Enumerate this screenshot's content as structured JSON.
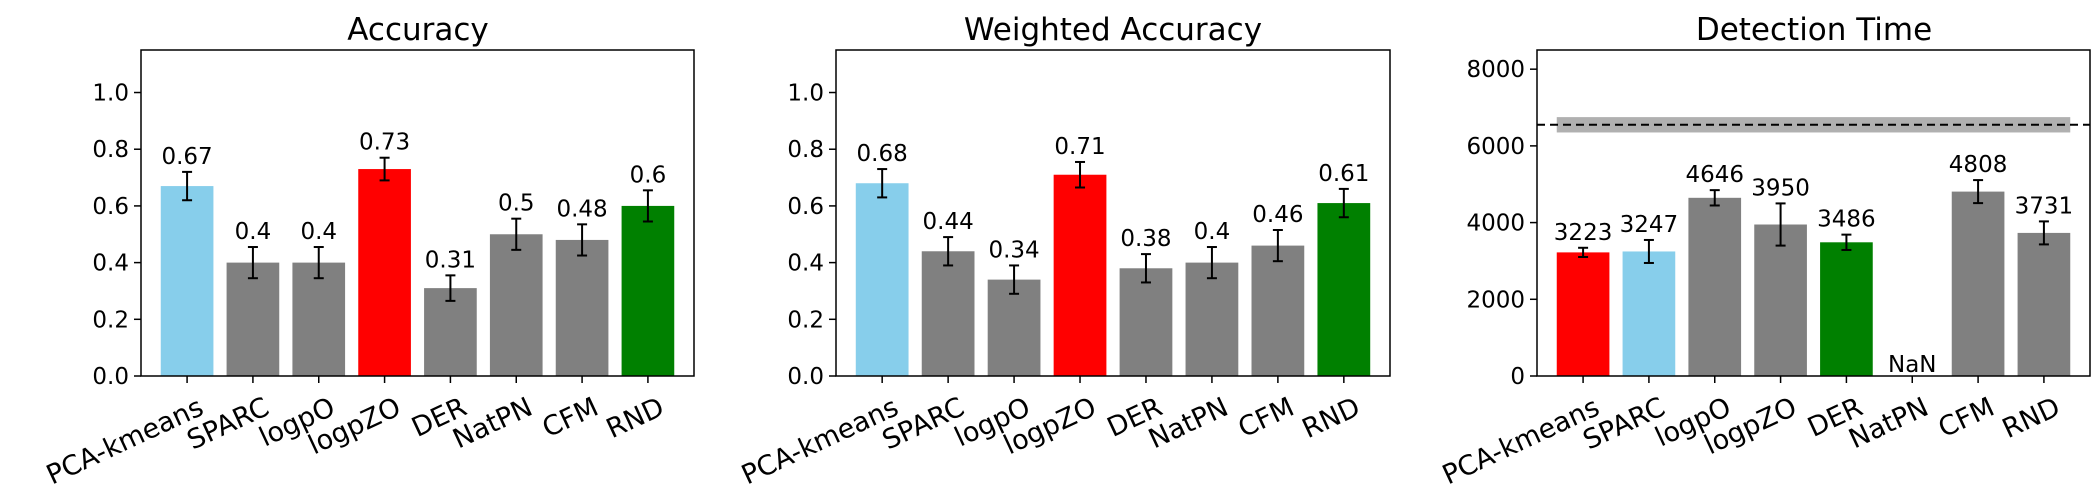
{
  "chart_data": [
    {
      "type": "bar",
      "title": "Accuracy",
      "categories": [
        "PCA-kmeans",
        "SPARC",
        "logpO",
        "logpZO",
        "DER",
        "NatPN",
        "CFM",
        "RND"
      ],
      "values": [
        0.67,
        0.4,
        0.4,
        0.73,
        0.31,
        0.5,
        0.48,
        0.6
      ],
      "value_labels": [
        "0.67",
        "0.4",
        "0.4",
        "0.73",
        "0.31",
        "0.5",
        "0.48",
        "0.6"
      ],
      "errors": [
        0.05,
        0.055,
        0.055,
        0.04,
        0.045,
        0.055,
        0.055,
        0.055
      ],
      "colors": [
        "#87ceeb",
        "#808080",
        "#808080",
        "#ff0000",
        "#808080",
        "#808080",
        "#808080",
        "#008000"
      ],
      "yticks": [
        "0.0",
        "0.2",
        "0.4",
        "0.6",
        "0.8",
        "1.0"
      ],
      "ytick_values": [
        0,
        0.2,
        0.4,
        0.6,
        0.8,
        1.0
      ],
      "ylim": [
        0,
        1.15
      ],
      "xlabel": "",
      "ylabel": "",
      "grid": false
    },
    {
      "type": "bar",
      "title": "Weighted Accuracy",
      "categories": [
        "PCA-kmeans",
        "SPARC",
        "logpO",
        "logpZO",
        "DER",
        "NatPN",
        "CFM",
        "RND"
      ],
      "values": [
        0.68,
        0.44,
        0.34,
        0.71,
        0.38,
        0.4,
        0.46,
        0.61
      ],
      "value_labels": [
        "0.68",
        "0.44",
        "0.34",
        "0.71",
        "0.38",
        "0.4",
        "0.46",
        "0.61"
      ],
      "errors": [
        0.05,
        0.05,
        0.05,
        0.045,
        0.05,
        0.055,
        0.055,
        0.05
      ],
      "colors": [
        "#87ceeb",
        "#808080",
        "#808080",
        "#ff0000",
        "#808080",
        "#808080",
        "#808080",
        "#008000"
      ],
      "yticks": [
        "0.0",
        "0.2",
        "0.4",
        "0.6",
        "0.8",
        "1.0"
      ],
      "ytick_values": [
        0,
        0.2,
        0.4,
        0.6,
        0.8,
        1.0
      ],
      "ylim": [
        0,
        1.15
      ],
      "xlabel": "",
      "ylabel": "",
      "grid": false
    },
    {
      "type": "bar",
      "title": "Detection Time",
      "categories": [
        "PCA-kmeans",
        "SPARC",
        "logpO",
        "logpZO",
        "DER",
        "NatPN",
        "CFM",
        "RND"
      ],
      "values": [
        3223,
        3247,
        4646,
        3950,
        3486,
        null,
        4808,
        3731
      ],
      "value_labels": [
        "3223",
        "3247",
        "4646",
        "3950",
        "3486",
        "NaN",
        "4808",
        "3731"
      ],
      "errors": [
        120,
        300,
        200,
        550,
        200,
        null,
        300,
        300
      ],
      "colors": [
        "#ff0000",
        "#87ceeb",
        "#808080",
        "#808080",
        "#008000",
        "#808080",
        "#808080",
        "#808080"
      ],
      "yticks": [
        "0",
        "2000",
        "4000",
        "6000",
        "8000"
      ],
      "ytick_values": [
        0,
        2000,
        4000,
        6000,
        8000
      ],
      "ylim": [
        0,
        8500
      ],
      "reference_line": {
        "y": 6550,
        "band": [
          6350,
          6750
        ],
        "style": "dashed"
      },
      "xlabel": "",
      "ylabel": "",
      "grid": false
    }
  ]
}
